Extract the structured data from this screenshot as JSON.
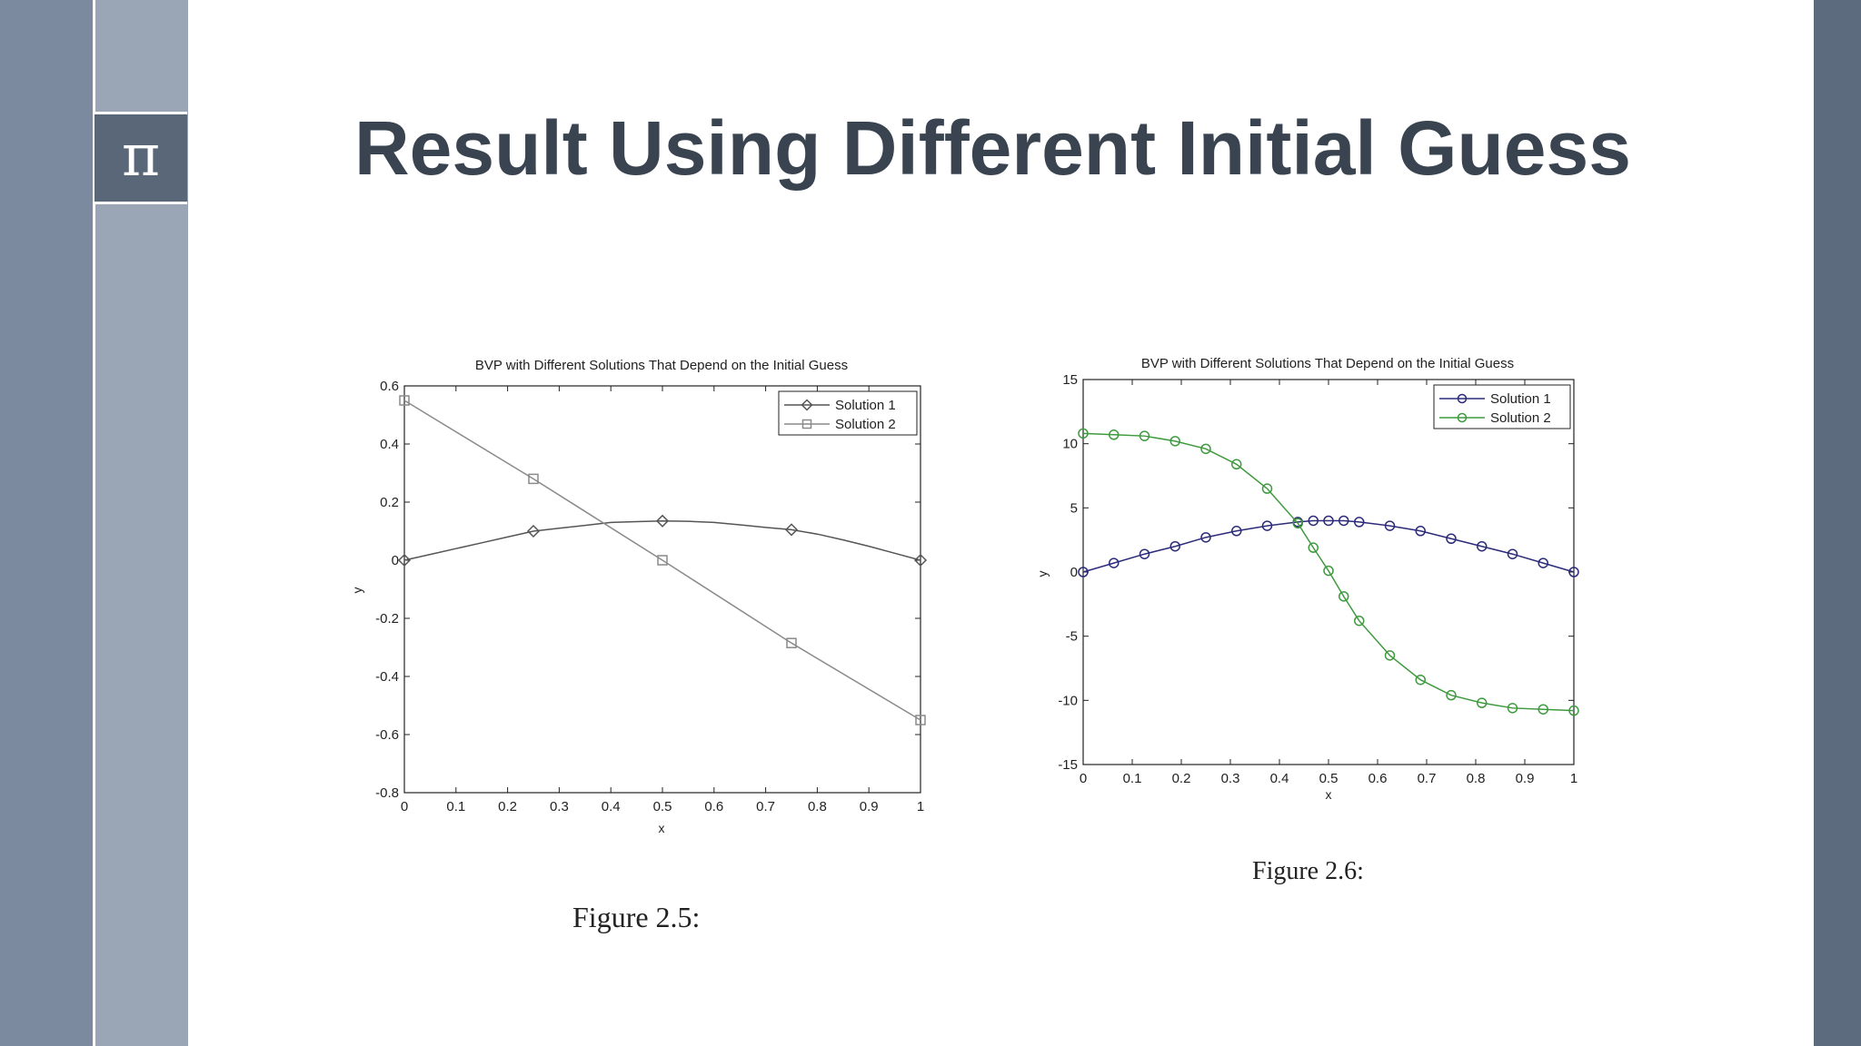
{
  "slide": {
    "title": "Result Using Different Initial Guess",
    "icon_glyph": "π",
    "icon_name": "pi-icon",
    "colors": {
      "left_bar_outer": "#7b8a9e",
      "left_bar_inner": "#9aa6b5",
      "right_bar": "#5d6b7f",
      "icon_box": "#5a6779",
      "title_text": "#3a4451"
    }
  },
  "chart_data": [
    {
      "type": "line",
      "title": "BVP with Different Solutions That Depend on the Initial Guess",
      "xlabel": "x",
      "ylabel": "y",
      "xlim": [
        0,
        1
      ],
      "ylim": [
        -0.8,
        0.6
      ],
      "xticks": [
        0,
        0.1,
        0.2,
        0.3,
        0.4,
        0.5,
        0.6,
        0.7,
        0.8,
        0.9,
        1
      ],
      "xtick_labels": [
        "0",
        "0.1",
        "0.2",
        "0.3",
        "0.4",
        "0.5",
        "0.6",
        "0.7",
        "0.8",
        "0.9",
        "1"
      ],
      "yticks": [
        -0.8,
        -0.6,
        -0.4,
        -0.2,
        0,
        0.2,
        0.4,
        0.6
      ],
      "ytick_labels": [
        "-0.8",
        "-0.6",
        "-0.4",
        "-0.2",
        "0",
        "0.2",
        "0.4",
        "0.6"
      ],
      "legend_position": "top-right",
      "grid": false,
      "caption": "Figure 2.5:",
      "series": [
        {
          "name": "Solution 1",
          "color": "#555555",
          "marker": "diamond",
          "x": [
            0,
            0.25,
            0.5,
            0.75,
            1
          ],
          "y": [
            0,
            0.1,
            0.135,
            0.105,
            0
          ],
          "line_x": [
            0,
            0.05,
            0.1,
            0.15,
            0.2,
            0.25,
            0.3,
            0.35,
            0.4,
            0.45,
            0.5,
            0.55,
            0.6,
            0.65,
            0.7,
            0.75,
            0.8,
            0.85,
            0.9,
            0.95,
            1
          ],
          "line_y": [
            0,
            0.02,
            0.04,
            0.06,
            0.08,
            0.1,
            0.11,
            0.12,
            0.13,
            0.133,
            0.135,
            0.134,
            0.13,
            0.122,
            0.113,
            0.105,
            0.09,
            0.07,
            0.048,
            0.024,
            0
          ]
        },
        {
          "name": "Solution 2",
          "color": "#8a8a8a",
          "marker": "square",
          "x": [
            0,
            0.25,
            0.5,
            0.75,
            1
          ],
          "y": [
            0.55,
            0.28,
            0,
            -0.285,
            -0.55
          ],
          "line_x": [
            0,
            0.25,
            0.5,
            0.75,
            1
          ],
          "line_y": [
            0.55,
            0.28,
            0,
            -0.285,
            -0.55
          ]
        }
      ]
    },
    {
      "type": "line",
      "title": "BVP with Different Solutions That Depend on the Initial Guess",
      "xlabel": "x",
      "ylabel": "y",
      "xlim": [
        0,
        1
      ],
      "ylim": [
        -15,
        15
      ],
      "xticks": [
        0,
        0.1,
        0.2,
        0.3,
        0.4,
        0.5,
        0.6,
        0.7,
        0.8,
        0.9,
        1
      ],
      "xtick_labels": [
        "0",
        "0.1",
        "0.2",
        "0.3",
        "0.4",
        "0.5",
        "0.6",
        "0.7",
        "0.8",
        "0.9",
        "1"
      ],
      "yticks": [
        -15,
        -10,
        -5,
        0,
        5,
        10,
        15
      ],
      "ytick_labels": [
        "-15",
        "-10",
        "-5",
        "0",
        "5",
        "10",
        "15"
      ],
      "legend_position": "top-right",
      "grid": false,
      "caption": "Figure 2.6:",
      "series": [
        {
          "name": "Solution 1",
          "color": "#2b2b7a",
          "marker": "circle",
          "x": [
            0,
            0.0625,
            0.125,
            0.1875,
            0.25,
            0.3125,
            0.375,
            0.4375,
            0.469,
            0.5,
            0.531,
            0.5625,
            0.625,
            0.6875,
            0.75,
            0.8125,
            0.875,
            0.9375,
            1
          ],
          "y": [
            0,
            0.7,
            1.4,
            2.0,
            2.7,
            3.2,
            3.6,
            3.9,
            4.0,
            4.0,
            4.0,
            3.9,
            3.6,
            3.2,
            2.6,
            2.0,
            1.4,
            0.7,
            0
          ],
          "line_x": [
            0,
            0.0625,
            0.125,
            0.1875,
            0.25,
            0.3125,
            0.375,
            0.4375,
            0.469,
            0.5,
            0.531,
            0.5625,
            0.625,
            0.6875,
            0.75,
            0.8125,
            0.875,
            0.9375,
            1
          ],
          "line_y": [
            0,
            0.7,
            1.4,
            2.0,
            2.7,
            3.2,
            3.6,
            3.9,
            4.0,
            4.0,
            4.0,
            3.9,
            3.6,
            3.2,
            2.6,
            2.0,
            1.4,
            0.7,
            0
          ]
        },
        {
          "name": "Solution 2",
          "color": "#3f9a3f",
          "marker": "circle",
          "x": [
            0,
            0.0625,
            0.125,
            0.1875,
            0.25,
            0.3125,
            0.375,
            0.4375,
            0.469,
            0.5,
            0.531,
            0.5625,
            0.625,
            0.6875,
            0.75,
            0.8125,
            0.875,
            0.9375,
            1
          ],
          "y": [
            10.8,
            10.7,
            10.6,
            10.2,
            9.6,
            8.4,
            6.5,
            3.8,
            1.9,
            0.1,
            -1.9,
            -3.8,
            -6.5,
            -8.4,
            -9.6,
            -10.2,
            -10.6,
            -10.7,
            -10.8
          ],
          "line_x": [
            0,
            0.0625,
            0.125,
            0.1875,
            0.25,
            0.3125,
            0.375,
            0.4375,
            0.469,
            0.5,
            0.531,
            0.5625,
            0.625,
            0.6875,
            0.75,
            0.8125,
            0.875,
            0.9375,
            1
          ],
          "line_y": [
            10.8,
            10.7,
            10.6,
            10.2,
            9.6,
            8.4,
            6.5,
            3.8,
            1.9,
            0.1,
            -1.9,
            -3.8,
            -6.5,
            -8.4,
            -9.6,
            -10.2,
            -10.6,
            -10.7,
            -10.8
          ]
        }
      ]
    }
  ]
}
